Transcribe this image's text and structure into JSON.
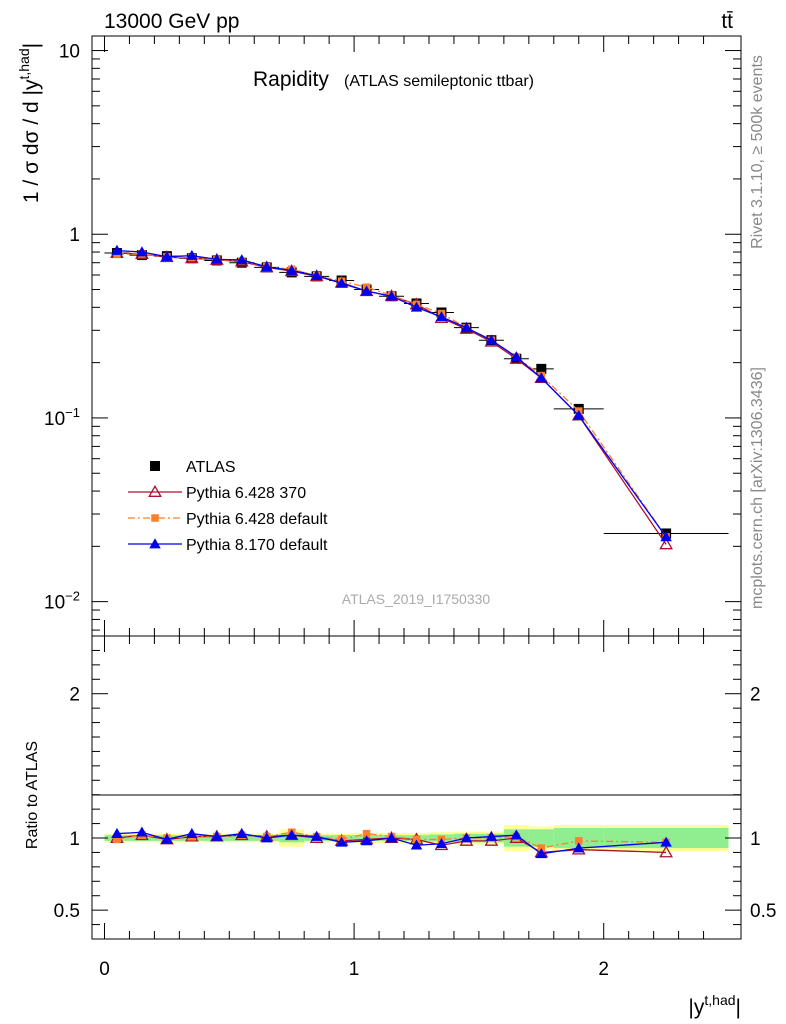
{
  "header": {
    "left": "13000 GeV pp",
    "right": "tt̄"
  },
  "side_labels": {
    "rivet": "Rivet 3.1.10, ≥ 500k events",
    "mcplots": "mcplots.cern.ch [arXiv:1306.3436]"
  },
  "chart_data": [
    {
      "type": "line",
      "title": "Rapidity",
      "subtitle": "(ATLAS semileptonic ttbar)",
      "watermark": "ATLAS_2019_I1750330",
      "ylabel": "1 / σ dσ / d |y^{t,had}|",
      "yscale": "log",
      "ylim": [
        0.0065,
        12
      ],
      "xlim": [
        -0.05,
        2.55
      ],
      "ytick_labels": [
        "10^-2",
        "10^-1",
        "1",
        "10"
      ],
      "legend_position": "lower-left",
      "x_edges": [
        0,
        0.1,
        0.2,
        0.3,
        0.4,
        0.5,
        0.6,
        0.7,
        0.8,
        0.9,
        1.0,
        1.1,
        1.2,
        1.3,
        1.4,
        1.5,
        1.6,
        1.7,
        1.8,
        2.0,
        2.5
      ],
      "x": [
        0.05,
        0.15,
        0.25,
        0.35,
        0.45,
        0.55,
        0.65,
        0.75,
        0.85,
        0.95,
        1.05,
        1.15,
        1.25,
        1.35,
        1.45,
        1.55,
        1.65,
        1.75,
        1.9,
        2.25
      ],
      "series": [
        {
          "name": "ATLAS",
          "color": "#000000",
          "marker": "square",
          "line": "none",
          "values": [
            0.79,
            0.77,
            0.76,
            0.74,
            0.72,
            0.7,
            0.66,
            0.62,
            0.59,
            0.56,
            0.5,
            0.46,
            0.42,
            0.375,
            0.31,
            0.265,
            0.21,
            0.185,
            0.112,
            0.0235
          ]
        },
        {
          "name": "Pythia 6.428 370",
          "color": "#aa1030",
          "marker": "triangle-open",
          "line": "solid",
          "values": [
            0.79,
            0.78,
            0.75,
            0.74,
            0.725,
            0.71,
            0.66,
            0.63,
            0.59,
            0.545,
            0.49,
            0.46,
            0.415,
            0.35,
            0.305,
            0.26,
            0.21,
            0.165,
            0.103,
            0.0205
          ]
        },
        {
          "name": "Pythia 6.428 default",
          "color": "#ff7f2a",
          "marker": "square-small",
          "line": "dashdot",
          "values": [
            0.78,
            0.78,
            0.755,
            0.745,
            0.725,
            0.715,
            0.665,
            0.645,
            0.595,
            0.555,
            0.515,
            0.465,
            0.415,
            0.37,
            0.31,
            0.265,
            0.215,
            0.17,
            0.109,
            0.0225
          ]
        },
        {
          "name": "Pythia 8.170 default",
          "color": "#0000ee",
          "marker": "triangle",
          "line": "solid",
          "values": [
            0.815,
            0.8,
            0.755,
            0.765,
            0.73,
            0.725,
            0.665,
            0.635,
            0.595,
            0.54,
            0.49,
            0.46,
            0.4,
            0.355,
            0.31,
            0.265,
            0.215,
            0.165,
            0.103,
            0.0225
          ]
        }
      ]
    },
    {
      "type": "line",
      "ylabel": "Ratio to ATLAS",
      "xlabel": "|y^{t,had}|",
      "ylim": [
        0.3,
        2.4
      ],
      "xlim": [
        -0.05,
        2.55
      ],
      "ytick_labels": [
        "0.5",
        "1",
        "2"
      ],
      "xtick_labels": [
        "0",
        "1",
        "2"
      ],
      "uncertainty_bands": {
        "inner_color": "#90ee90",
        "outer_color": "#ffff99",
        "inner": [
          0.02,
          0.02,
          0.02,
          0.02,
          0.02,
          0.02,
          0.02,
          0.03,
          0.02,
          0.02,
          0.02,
          0.02,
          0.02,
          0.025,
          0.03,
          0.03,
          0.06,
          0.06,
          0.07,
          0.07
        ],
        "outer": [
          0.03,
          0.03,
          0.03,
          0.03,
          0.03,
          0.03,
          0.03,
          0.06,
          0.03,
          0.03,
          0.035,
          0.035,
          0.035,
          0.04,
          0.045,
          0.045,
          0.09,
          0.08,
          0.09,
          0.09
        ]
      },
      "series": [
        {
          "name": "Pythia 6.428 370",
          "color": "#aa1030",
          "marker": "triangle-open",
          "line": "solid",
          "values": [
            1.0,
            1.02,
            0.99,
            1.01,
            1.01,
            1.02,
            1.01,
            1.02,
            1.0,
            0.98,
            0.99,
            1.0,
            0.99,
            0.95,
            0.98,
            0.98,
            1.0,
            0.9,
            0.92,
            0.9
          ]
        },
        {
          "name": "Pythia 6.428 default",
          "color": "#ff7f2a",
          "marker": "square-small",
          "line": "dashdot",
          "values": [
            0.99,
            1.02,
            1.0,
            1.01,
            1.01,
            1.02,
            1.01,
            1.04,
            1.01,
            0.99,
            1.03,
            1.01,
            0.99,
            0.99,
            1.0,
            1.0,
            1.01,
            0.93,
            0.98,
            0.97
          ]
        },
        {
          "name": "Pythia 8.170 default",
          "color": "#0000ee",
          "marker": "triangle",
          "line": "solid",
          "values": [
            1.03,
            1.04,
            0.99,
            1.03,
            1.01,
            1.03,
            1.0,
            1.02,
            1.01,
            0.97,
            0.98,
            1.0,
            0.95,
            0.96,
            1.0,
            1.01,
            1.02,
            0.89,
            0.93,
            0.97
          ]
        }
      ]
    }
  ]
}
